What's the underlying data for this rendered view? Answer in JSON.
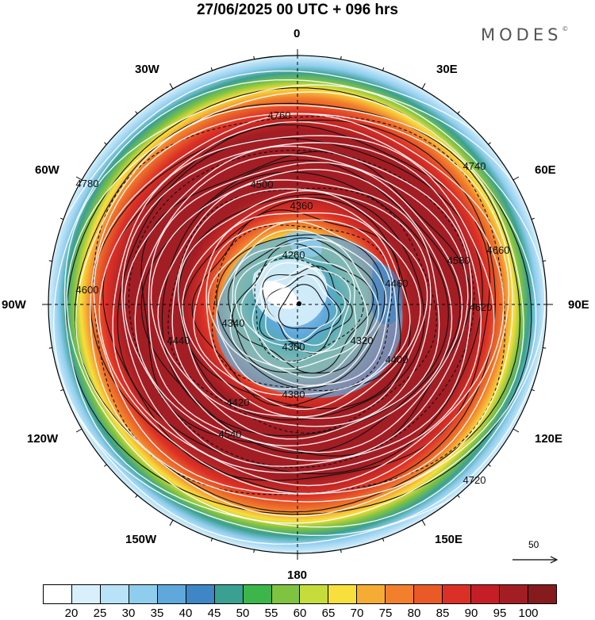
{
  "header": {
    "title": "27/06/2025  00 UTC  + 096 hrs",
    "brand": "MODES"
  },
  "map": {
    "lon_labels": [
      "0",
      "30E",
      "60E",
      "90E",
      "120E",
      "150E",
      "180",
      "150W",
      "120W",
      "90W",
      "60W",
      "30W"
    ],
    "contour_labels": [
      "4760",
      "4780",
      "4740",
      "4720",
      "4660",
      "4620",
      "4600",
      "4580",
      "4540",
      "4500",
      "4460",
      "4440",
      "4420",
      "4400",
      "4380",
      "4360",
      "4340",
      "4320",
      "4300",
      "4260"
    ]
  },
  "wind_reference": {
    "value": "50"
  },
  "colorbar": {
    "colors": [
      "#ffffff",
      "#d8f0fb",
      "#b8e2f7",
      "#8fcdee",
      "#5fa8dc",
      "#3e86c6",
      "#3aa091",
      "#3cb54a",
      "#80c341",
      "#c6dc3a",
      "#f8df3c",
      "#f6ac34",
      "#f27f2c",
      "#ea5a27",
      "#dc3026",
      "#c41f26",
      "#a31d24",
      "#861b1e"
    ],
    "ticks": [
      "20",
      "25",
      "30",
      "35",
      "40",
      "45",
      "50",
      "55",
      "60",
      "65",
      "70",
      "75",
      "80",
      "85",
      "90",
      "95",
      "100"
    ]
  }
}
